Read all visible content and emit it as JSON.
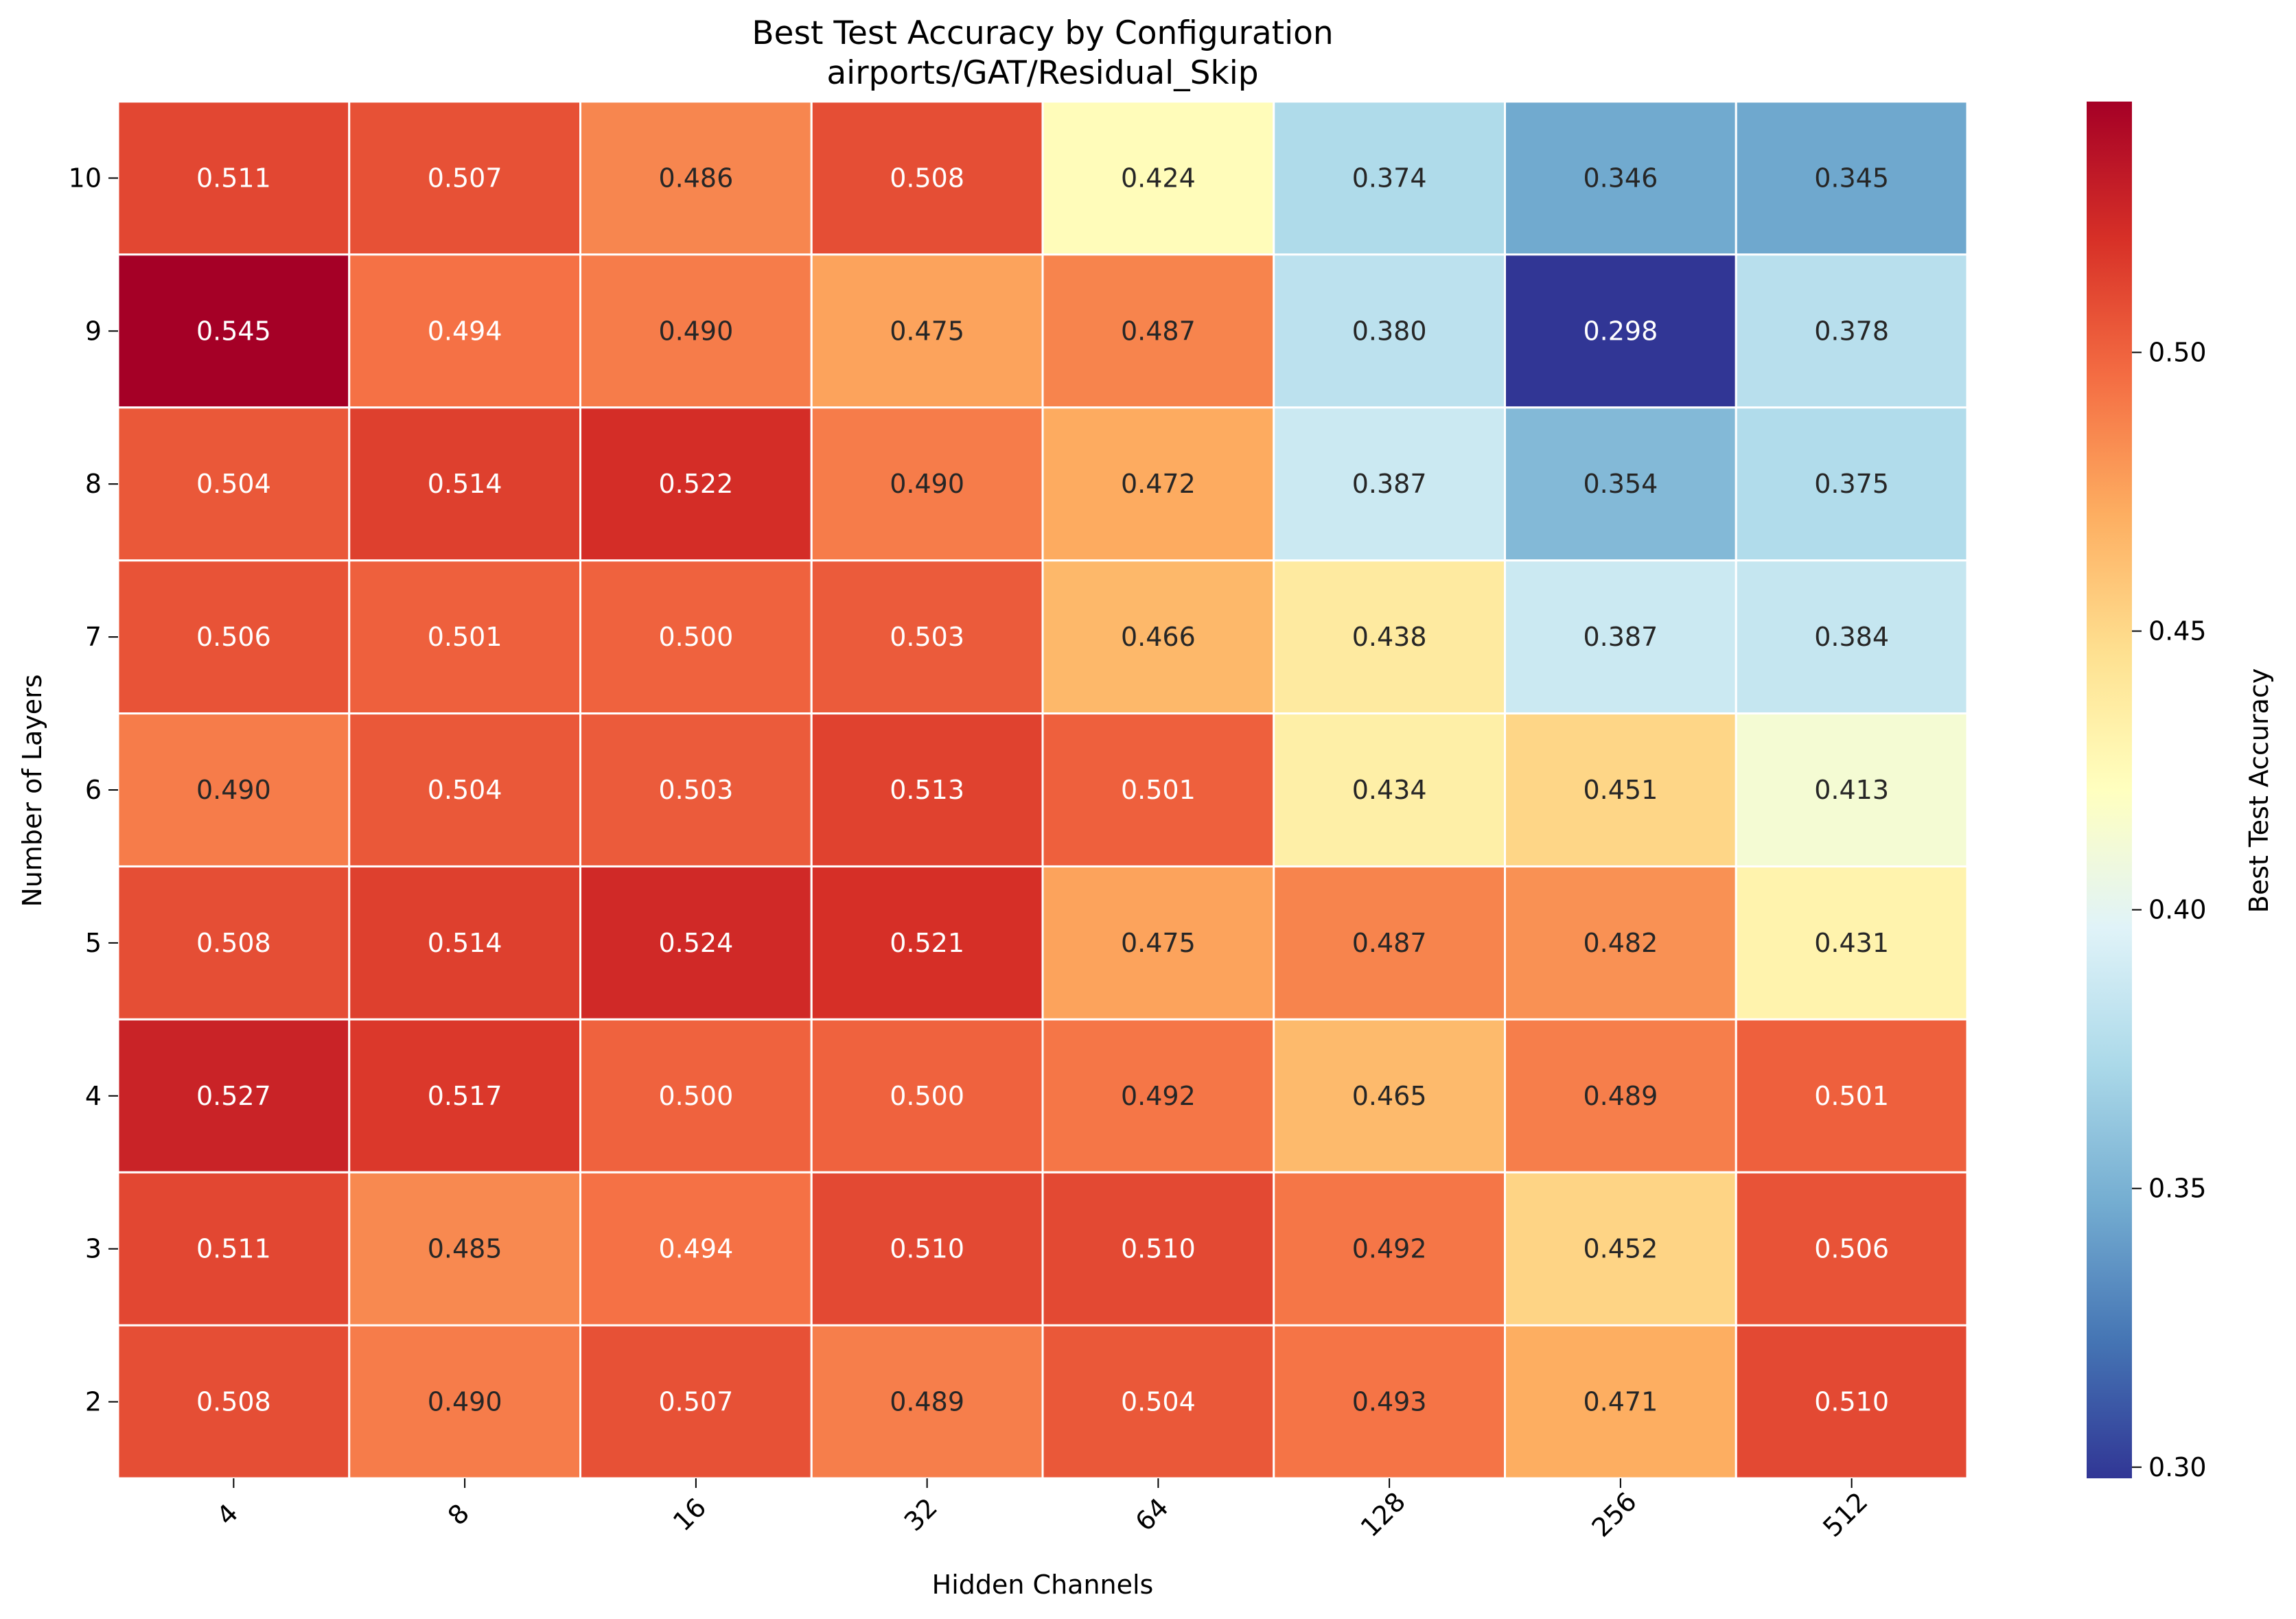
{
  "chart_data": {
    "type": "heatmap",
    "title": "Best Test Accuracy by Configuration",
    "subtitle": "airports/GAT/Residual_Skip",
    "xlabel": "Hidden Channels",
    "ylabel": "Number of Layers",
    "colorbar_label": "Best Test Accuracy",
    "colormap": "RdYlBu_r",
    "x_categories": [
      "4",
      "8",
      "16",
      "32",
      "64",
      "128",
      "256",
      "512"
    ],
    "y_categories": [
      "10",
      "9",
      "8",
      "7",
      "6",
      "5",
      "4",
      "3",
      "2"
    ],
    "values": [
      [
        0.511,
        0.507,
        0.486,
        0.508,
        0.424,
        0.374,
        0.346,
        0.345
      ],
      [
        0.545,
        0.494,
        0.49,
        0.475,
        0.487,
        0.38,
        0.298,
        0.378
      ],
      [
        0.504,
        0.514,
        0.522,
        0.49,
        0.472,
        0.387,
        0.354,
        0.375
      ],
      [
        0.506,
        0.501,
        0.5,
        0.503,
        0.466,
        0.438,
        0.387,
        0.384
      ],
      [
        0.49,
        0.504,
        0.503,
        0.513,
        0.501,
        0.434,
        0.451,
        0.413
      ],
      [
        0.508,
        0.514,
        0.524,
        0.521,
        0.475,
        0.487,
        0.482,
        0.431
      ],
      [
        0.527,
        0.517,
        0.5,
        0.5,
        0.492,
        0.465,
        0.489,
        0.501
      ],
      [
        0.511,
        0.485,
        0.494,
        0.51,
        0.51,
        0.492,
        0.452,
        0.506
      ],
      [
        0.508,
        0.49,
        0.507,
        0.489,
        0.504,
        0.493,
        0.471,
        0.51
      ]
    ],
    "value_format": "0.000",
    "vmin": 0.298,
    "vmax": 0.545,
    "colorbar_ticks": [
      0.3,
      0.35,
      0.4,
      0.45,
      0.5
    ],
    "colorbar_tick_labels": [
      "0.30",
      "0.35",
      "0.40",
      "0.45",
      "0.50"
    ]
  }
}
